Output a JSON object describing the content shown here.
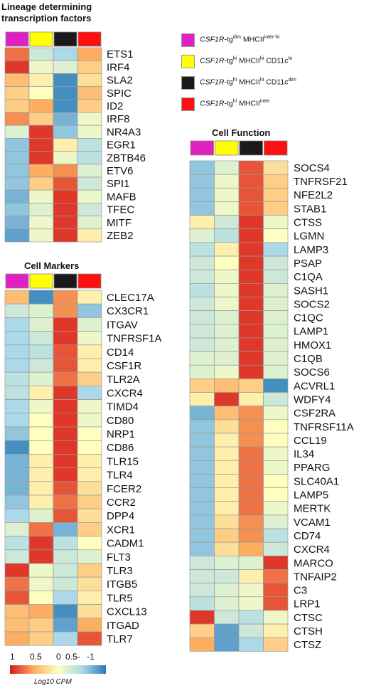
{
  "titles": {
    "lineage": "Lineage determining transcription factors",
    "markers": "Cell Markers",
    "function": "Cell Function"
  },
  "legend": {
    "items": [
      {
        "color": "#e020c0",
        "italic": "CSF1R",
        "pre": "-tg",
        "sup1": "dim",
        "mid": " MHCII",
        "sup2": "inter-hi",
        "post": ""
      },
      {
        "color": "#ffff00",
        "italic": "CSF1R",
        "pre": "-tg",
        "sup1": "hi",
        "mid": " MHCII",
        "sup2": "hi",
        "post": " CD11c",
        "sup3": "hi"
      },
      {
        "color": "#1a1a1a",
        "italic": "CSF1R",
        "pre": "-tg",
        "sup1": "hi",
        "mid": " MHCII",
        "sup2": "hi",
        "post": " CD11c",
        "sup3": "dim"
      },
      {
        "color": "#ff1010",
        "italic": "CSF1R",
        "pre": "-tg",
        "sup1": "hi",
        "mid": " MHCII",
        "sup2": "inter",
        "post": ""
      }
    ]
  },
  "colorscale": {
    "ticks": [
      "1",
      "0.5",
      "0",
      "0.5-",
      "-1"
    ],
    "title": "Log10 CPM",
    "high": "#d7191c",
    "mid": "#ffffbf",
    "low": "#2c7bb6"
  },
  "chart_data": [
    {
      "type": "heatmap",
      "title": "Lineage determining transcription factors",
      "columns": [
        "#e020c0",
        "#ffff00",
        "#1a1a1a",
        "#ff1010"
      ],
      "rows": [
        "ETS1",
        "IRF4",
        "SLA2",
        "SPIC",
        "ID2",
        "IRF8",
        "NR4A3",
        "EGR1",
        "ZBTB46",
        "ETV6",
        "SPI1",
        "MAFB",
        "TFEC",
        "MITF",
        "ZEB2"
      ],
      "values": [
        [
          0.7,
          -0.3,
          -0.5,
          0.5
        ],
        [
          0.9,
          -0.1,
          -0.2,
          0.3
        ],
        [
          0.4,
          0.1,
          -0.9,
          0.2
        ],
        [
          0.3,
          0.0,
          -0.9,
          0.4
        ],
        [
          0.3,
          0.5,
          -0.9,
          0.3
        ],
        [
          0.6,
          0.3,
          -0.7,
          -0.1
        ],
        [
          -0.2,
          0.9,
          -0.6,
          -0.1
        ],
        [
          -0.6,
          0.9,
          0.1,
          -0.4
        ],
        [
          -0.6,
          0.9,
          -0.1,
          -0.4
        ],
        [
          -0.6,
          0.5,
          0.6,
          -0.2
        ],
        [
          -0.6,
          0.3,
          0.8,
          -0.3
        ],
        [
          -0.7,
          -0.1,
          0.9,
          -0.1
        ],
        [
          -0.6,
          -0.2,
          0.9,
          -0.3
        ],
        [
          -0.7,
          -0.1,
          0.9,
          -0.2
        ],
        [
          -0.8,
          -0.1,
          0.9,
          0.1
        ]
      ],
      "vmin": -1,
      "vmax": 1
    },
    {
      "type": "heatmap",
      "title": "Cell Markers",
      "columns": [
        "#e020c0",
        "#ffff00",
        "#1a1a1a",
        "#ff1010"
      ],
      "rows": [
        "CLEC17A",
        "CX3CR1",
        "ITGAV",
        "TNFRSF1A",
        "CD14",
        "CSF1R",
        "TLR2A",
        "CXCR4",
        "TIMD4",
        "CD80",
        "NRP1",
        "CD86",
        "TLR15",
        "TLR4",
        "FCER2",
        "CCR2",
        "DPP4",
        "XCR1",
        "CADM1",
        "FLT3",
        "TLR3",
        "ITGB5",
        "TLR5",
        "CXCL13",
        "ITGAD",
        "TLR7"
      ],
      "values": [
        [
          0.4,
          -0.9,
          0.6,
          0.1
        ],
        [
          -0.3,
          -0.2,
          0.6,
          -0.6
        ],
        [
          -0.5,
          -0.2,
          0.9,
          -0.2
        ],
        [
          -0.5,
          -0.3,
          0.9,
          -0.1
        ],
        [
          -0.5,
          -0.4,
          0.8,
          0.1
        ],
        [
          -0.5,
          -0.3,
          0.8,
          0.1
        ],
        [
          -0.4,
          -0.2,
          0.7,
          0.3
        ],
        [
          -0.4,
          0.1,
          0.9,
          -0.5
        ],
        [
          -0.5,
          -0.1,
          0.9,
          -0.1
        ],
        [
          -0.5,
          0.0,
          0.9,
          -0.1
        ],
        [
          -0.6,
          0.0,
          0.9,
          0.0
        ],
        [
          -0.9,
          0.0,
          0.9,
          0.0
        ],
        [
          -0.7,
          0.1,
          0.9,
          0.1
        ],
        [
          -0.7,
          0.1,
          0.9,
          0.1
        ],
        [
          -0.7,
          0.1,
          0.8,
          0.2
        ],
        [
          -0.6,
          0.1,
          0.7,
          0.3
        ],
        [
          -0.5,
          -0.2,
          0.8,
          0.2
        ],
        [
          -0.2,
          0.7,
          -0.7,
          0.3
        ],
        [
          -0.4,
          0.9,
          -0.4,
          0.0
        ],
        [
          -0.3,
          0.9,
          -0.3,
          -0.2
        ],
        [
          0.9,
          -0.1,
          -0.3,
          0.3
        ],
        [
          0.7,
          -0.1,
          -0.3,
          0.2
        ],
        [
          0.8,
          0.0,
          -0.5,
          0.1
        ],
        [
          0.4,
          0.5,
          -0.9,
          0.2
        ],
        [
          0.4,
          0.3,
          -0.8,
          0.5
        ],
        [
          0.5,
          0.3,
          -0.5,
          0.8
        ]
      ],
      "vmin": -1,
      "vmax": 1
    },
    {
      "type": "heatmap",
      "title": "Cell Function",
      "columns": [
        "#e020c0",
        "#ffff00",
        "#1a1a1a",
        "#ff1010"
      ],
      "rows": [
        "SOCS4",
        "TNFRSF21",
        "NFE2L2",
        "STAB1",
        "CTSS",
        "LGMN",
        "LAMP3",
        "PSAP",
        "C1QA",
        "SASH1",
        "SOCS2",
        "C1QC",
        "LAMP1",
        "HMOX1",
        "C1QB",
        "SOCS6",
        "ACVRL1",
        "WDFY4",
        "CSF2RA",
        "TNFRSF11A",
        "CCL19",
        "IL34",
        "PPARG",
        "SLC40A1",
        "LAMP5",
        "MERTK",
        "VCAM1",
        "CD74",
        "CXCR4",
        "MARCO",
        "TNFAIP2",
        "C3",
        "LRP1",
        "CTSC",
        "CTSH",
        "CTSZ"
      ],
      "values": [
        [
          -0.6,
          -0.2,
          0.8,
          0.2
        ],
        [
          -0.6,
          -0.1,
          0.8,
          0.3
        ],
        [
          -0.6,
          -0.1,
          0.8,
          0.3
        ],
        [
          -0.6,
          -0.1,
          0.8,
          0.3
        ],
        [
          0.1,
          -0.3,
          0.9,
          -0.1
        ],
        [
          -0.2,
          -0.4,
          0.9,
          0.0
        ],
        [
          -0.4,
          0.1,
          0.9,
          -0.5
        ],
        [
          -0.3,
          0.0,
          0.9,
          -0.3
        ],
        [
          -0.3,
          -0.1,
          0.9,
          -0.3
        ],
        [
          -0.4,
          -0.1,
          0.9,
          -0.2
        ],
        [
          -0.3,
          -0.1,
          0.9,
          -0.2
        ],
        [
          -0.3,
          -0.2,
          0.9,
          -0.2
        ],
        [
          -0.3,
          -0.2,
          0.9,
          -0.2
        ],
        [
          -0.3,
          -0.2,
          0.9,
          -0.2
        ],
        [
          -0.2,
          -0.2,
          0.9,
          -0.2
        ],
        [
          -0.2,
          -0.1,
          0.9,
          -0.2
        ],
        [
          0.3,
          0.4,
          0.3,
          -0.9
        ],
        [
          0.1,
          0.9,
          0.1,
          -0.3
        ],
        [
          -0.7,
          0.4,
          0.6,
          -0.1
        ],
        [
          -0.6,
          0.2,
          0.6,
          0.0
        ],
        [
          -0.6,
          0.1,
          0.6,
          0.0
        ],
        [
          -0.6,
          0.1,
          0.7,
          -0.1
        ],
        [
          -0.6,
          0.1,
          0.7,
          -0.1
        ],
        [
          -0.6,
          0.1,
          0.7,
          0.0
        ],
        [
          -0.6,
          0.1,
          0.7,
          0.0
        ],
        [
          -0.6,
          0.1,
          0.7,
          -0.1
        ],
        [
          -0.6,
          0.2,
          0.6,
          -0.2
        ],
        [
          -0.6,
          0.3,
          0.6,
          -0.4
        ],
        [
          -0.6,
          0.2,
          0.5,
          -0.3
        ],
        [
          -0.3,
          -0.2,
          -0.2,
          0.9
        ],
        [
          -0.3,
          -0.3,
          0.1,
          0.7
        ],
        [
          -0.3,
          -0.2,
          -0.1,
          0.8
        ],
        [
          -0.4,
          -0.2,
          -0.1,
          0.8
        ],
        [
          0.9,
          -0.3,
          -0.4,
          -0.1
        ],
        [
          0.3,
          -0.8,
          -0.3,
          0.1
        ],
        [
          0.5,
          -0.8,
          -0.5,
          0.3
        ]
      ],
      "vmin": -1,
      "vmax": 1
    }
  ]
}
